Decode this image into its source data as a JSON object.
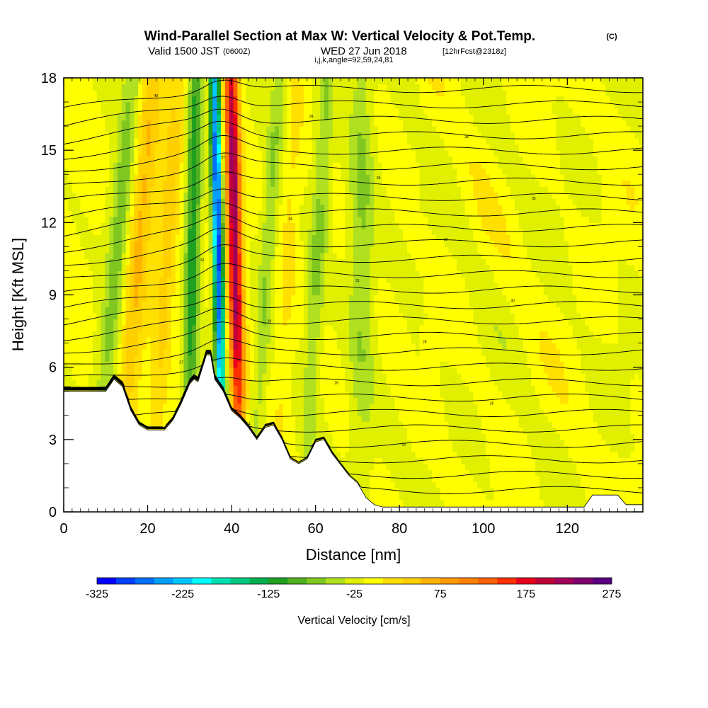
{
  "title": {
    "main": "Wind-Parallel Section at Max W: Vertical Velocity & Pot.Temp.",
    "main_mark": "(C)",
    "valid_prefix": "Valid 1500 JST",
    "valid_utc": "(0600Z)",
    "valid_date": "WED 27 Jun 2018",
    "forecast": "[12hrFcst@2318z]",
    "index_line": "i,j,k,angle=92,59,24,81"
  },
  "chart_data": {
    "type": "heatmap",
    "xlabel": "Distance [nm]",
    "ylabel": "Height [Kft MSL]",
    "xlim": [
      0,
      138
    ],
    "ylim": [
      0,
      18
    ],
    "x_ticks": [
      "0",
      "20",
      "40",
      "60",
      "80",
      "100",
      "120"
    ],
    "y_ticks": [
      "0",
      "3",
      "6",
      "9",
      "12",
      "15",
      "18"
    ],
    "x_tick_values": [
      0,
      20,
      40,
      60,
      80,
      100,
      120
    ],
    "y_tick_values": [
      0,
      3,
      6,
      9,
      12,
      15,
      18
    ],
    "colorbar": {
      "label": "Vertical Velocity [cm/s]",
      "tick_labels": [
        "-325",
        "-225",
        "-125",
        "-25",
        "75",
        "175",
        "275"
      ],
      "range": [
        -325,
        275
      ],
      "bin_size": 25,
      "colors": [
        "#0000ff",
        "#0040ff",
        "#0070ff",
        "#00a0ff",
        "#00c8ff",
        "#00ffff",
        "#00e0b0",
        "#00c880",
        "#00b050",
        "#20a020",
        "#50b020",
        "#80c820",
        "#b0e020",
        "#e0f000",
        "#ffff00",
        "#ffe000",
        "#ffd000",
        "#ffb400",
        "#ff9a00",
        "#ff8000",
        "#ff6000",
        "#ff3000",
        "#e8001c",
        "#c0003a",
        "#a0005a",
        "#800070",
        "#5a0080"
      ]
    },
    "velocity_features": [
      {
        "x": 17,
        "halfwidth": 3,
        "tilt": 0.45,
        "amplitude": 80
      },
      {
        "x": 24,
        "halfwidth": 2.4,
        "tilt": 0.35,
        "amplitude": 60
      },
      {
        "x": 12,
        "halfwidth": 2.5,
        "tilt": 0.5,
        "amplitude": -75
      },
      {
        "x": 30.5,
        "halfwidth": 1.7,
        "tilt": 0.1,
        "amplitude": -130
      },
      {
        "x": 37,
        "halfwidth": 1.2,
        "tilt": -0.12,
        "amplitude": -320
      },
      {
        "x": 41,
        "halfwidth": 1.7,
        "tilt": -0.12,
        "amplitude": 275
      },
      {
        "x": 48,
        "halfwidth": 1.8,
        "tilt": 0.35,
        "amplitude": -55
      },
      {
        "x": 53,
        "halfwidth": 2,
        "tilt": 0.3,
        "amplitude": 30
      },
      {
        "x": 60,
        "halfwidth": 2,
        "tilt": 0.3,
        "amplitude": -60
      },
      {
        "x": 71,
        "halfwidth": 3,
        "tilt": 0,
        "amplitude": -55
      }
    ],
    "terrain_profile": [
      [
        0,
        5.0
      ],
      [
        10,
        5.0
      ],
      [
        12,
        5.5
      ],
      [
        14,
        5.2
      ],
      [
        16,
        4.2
      ],
      [
        18,
        3.6
      ],
      [
        20,
        3.4
      ],
      [
        24,
        3.4
      ],
      [
        26,
        3.8
      ],
      [
        28,
        4.5
      ],
      [
        30,
        5.3
      ],
      [
        31,
        5.5
      ],
      [
        32,
        5.4
      ],
      [
        34,
        6.5
      ],
      [
        35,
        6.5
      ],
      [
        36,
        5.5
      ],
      [
        38,
        5.0
      ],
      [
        40,
        4.2
      ],
      [
        42,
        3.9
      ],
      [
        44,
        3.5
      ],
      [
        46,
        3.0
      ],
      [
        48,
        3.5
      ],
      [
        50,
        3.6
      ],
      [
        52,
        3.0
      ],
      [
        54,
        2.2
      ],
      [
        56,
        2.0
      ],
      [
        58,
        2.2
      ],
      [
        60,
        2.9
      ],
      [
        62,
        3.0
      ],
      [
        64,
        2.4
      ],
      [
        68,
        1.5
      ],
      [
        70,
        1.2
      ],
      [
        72,
        0.6
      ],
      [
        74,
        0.3
      ],
      [
        76,
        0.2
      ],
      [
        90,
        0.2
      ],
      [
        118,
        0.2
      ],
      [
        124,
        0.2
      ],
      [
        126,
        0.7
      ],
      [
        132,
        0.7
      ],
      [
        134,
        0.3
      ],
      [
        138,
        0.3
      ]
    ],
    "theta_contour_labels": [
      "40",
      "39",
      "38",
      "37",
      "36",
      "35",
      "34",
      "33",
      "32",
      "31",
      "30",
      "29",
      "28",
      "27",
      "26",
      "25",
      "24",
      "23"
    ]
  }
}
